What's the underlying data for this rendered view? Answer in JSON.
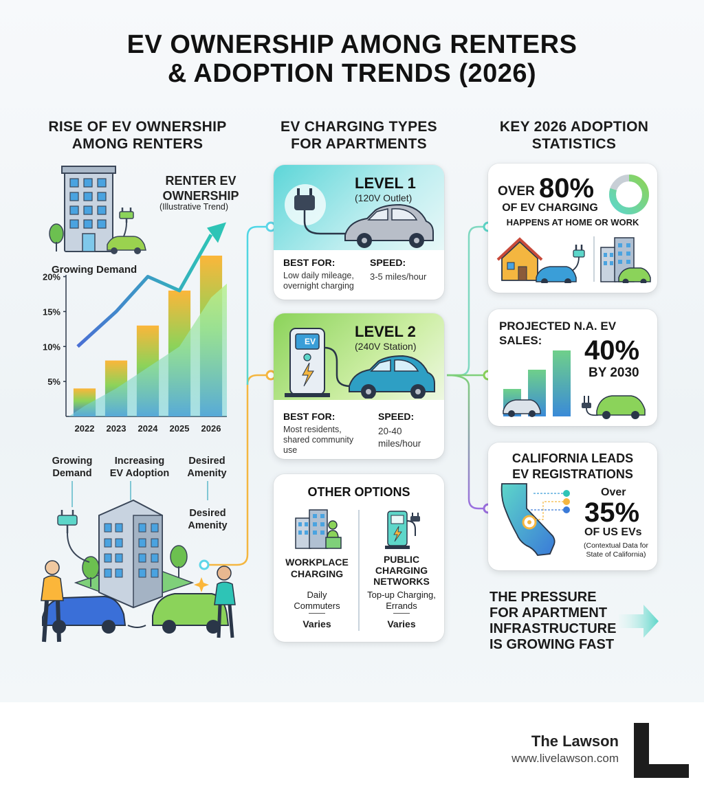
{
  "title": {
    "line1": "EV OWNERSHIP AMONG RENTERS",
    "line2": "& ADOPTION TRENDS (2026)"
  },
  "columns": {
    "left": {
      "line1": "RISE OF EV OWNERSHIP",
      "line2": "AMONG RENTERS"
    },
    "mid": {
      "line1": "EV CHARGING TYPES",
      "line2": "FOR APARTMENTS"
    },
    "right": {
      "line1": "KEY 2026 ADOPTION",
      "line2": "STATISTICS"
    }
  },
  "left_panel": {
    "chart_title_1": "RENTER EV",
    "chart_title_2": "OWNERSHIP",
    "chart_subtitle": "(Illustrative Trend)",
    "growing_label": "Growing Demand",
    "bottom_labels": [
      {
        "line1": "Growing",
        "line2": "Demand"
      },
      {
        "line1": "Increasing",
        "line2": "EV Adoption"
      },
      {
        "line1": "Desired",
        "line2": "Amenity"
      }
    ],
    "desired_amenity_1": "Desired",
    "desired_amenity_2": "Amenity"
  },
  "chart_data": {
    "type": "bar",
    "title": "RENTER EV OWNERSHIP",
    "subtitle": "(Illustrative Trend)",
    "categories": [
      "2022",
      "2023",
      "2024",
      "2025",
      "2026"
    ],
    "values": [
      4,
      8,
      13,
      18,
      23
    ],
    "yticks": [
      "5%",
      "10%",
      "15%",
      "20%"
    ],
    "ytick_values": [
      5,
      10,
      15,
      20
    ],
    "ylim": [
      0,
      23
    ],
    "trend_line": [
      10,
      15,
      20,
      18,
      26
    ],
    "area_line": [
      1.5,
      4,
      7,
      10,
      17
    ],
    "colors": {
      "bar_top": "#fbb63a",
      "bar_mid": "#8bd35a",
      "bar_bottom": "#3a7ad8",
      "trend_start": "#4a6fd4",
      "trend_end": "#2ec4b6"
    }
  },
  "level1": {
    "title": "LEVEL 1",
    "sub": "(120V Outlet)",
    "best_label": "BEST FOR:",
    "best_l1": "Low daily mileage,",
    "best_l2": "overnight charging",
    "speed_label": "SPEED:",
    "speed_val": "3-5 miles/hour"
  },
  "level2": {
    "title": "LEVEL 2",
    "sub": "(240V Station)",
    "station_label": "EV",
    "best_label": "BEST FOR:",
    "best_l1": "Most residents,",
    "best_l2": "shared community",
    "best_l3": "use",
    "speed_label": "SPEED:",
    "speed_l1": "20-40",
    "speed_l2": "miles/hour"
  },
  "other": {
    "title": "OTHER OPTIONS",
    "left": {
      "l1": "WORKPLACE",
      "l2": "CHARGING",
      "d1": "Daily",
      "d2": "Commuters",
      "val": "Varies"
    },
    "right": {
      "l1": "PUBLIC",
      "l2": "CHARGING",
      "l3": "NETWORKS",
      "d1": "Top-up Charging,",
      "d2": "Errands",
      "val": "Varies"
    }
  },
  "stat1": {
    "over": "OVER",
    "num": "80%",
    "l1": "OF EV CHARGING",
    "l2": "HAPPENS AT HOME OR WORK",
    "donut_fraction": 0.8
  },
  "stat2": {
    "l1": "PROJECTED N.A. EV",
    "l2": "SALES:",
    "num": "40%",
    "by": "BY 2030"
  },
  "stat3": {
    "l1": "CALIFORNIA LEADS",
    "l2": "EV REGISTRATIONS",
    "over": "Over",
    "num": "35%",
    "of": "OF US EVs",
    "ctx1": "(Contextual Data for",
    "ctx2": "State of California)"
  },
  "pressure": {
    "l1": "THE PRESSURE",
    "l2": "FOR APARTMENT",
    "l3": "INFRASTRUCTURE",
    "l4": "IS GROWING FAST"
  },
  "footer": {
    "brand": "The Lawson",
    "url": "www.livelawson.com"
  }
}
